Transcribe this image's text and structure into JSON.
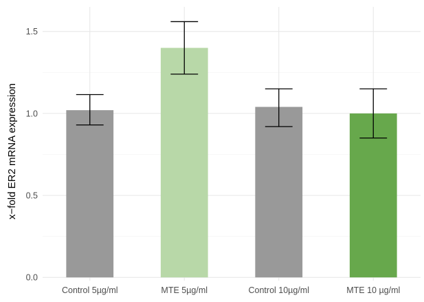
{
  "chart_data": {
    "type": "bar",
    "title": "",
    "xlabel": "",
    "ylabel": "x−fold ER2 mRNA expression",
    "categories": [
      "Control 5µg/ml",
      "MTE 5µg/ml",
      "Control 10µg/ml",
      "MTE 10 µg/ml"
    ],
    "values": [
      1.02,
      1.4,
      1.04,
      1.0
    ],
    "error_low": [
      0.93,
      1.24,
      0.92,
      0.85
    ],
    "error_high": [
      1.115,
      1.56,
      1.15,
      1.15
    ],
    "colors": [
      "#999999",
      "#b8d8a8",
      "#999999",
      "#67a84c"
    ],
    "ylim": [
      -0.02,
      1.65
    ],
    "yticks": [
      0.0,
      0.5,
      1.0,
      1.5
    ],
    "ytick_labels": [
      "0.0",
      "0.5",
      "1.0",
      "1.5"
    ],
    "grid": true,
    "legend": "none"
  }
}
